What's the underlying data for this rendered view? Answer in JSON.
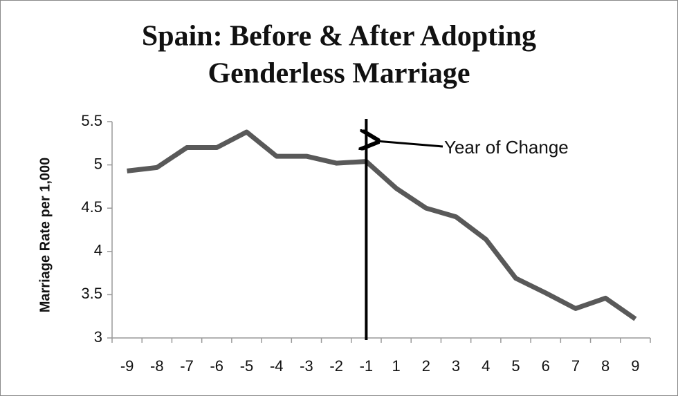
{
  "chart_data": {
    "type": "line",
    "title": [
      "Spain: Before & After Adopting",
      "Genderless Marriage"
    ],
    "y_label": "Marriage Rate per 1,000",
    "categories": [
      "-9",
      "-8",
      "-7",
      "-6",
      "-5",
      "-4",
      "-3",
      "-2",
      "-1",
      "1",
      "2",
      "3",
      "4",
      "5",
      "6",
      "7",
      "8",
      "9"
    ],
    "values": [
      4.93,
      4.97,
      5.2,
      5.2,
      5.38,
      5.1,
      5.1,
      5.02,
      5.04,
      4.73,
      4.5,
      4.4,
      4.14,
      3.69,
      3.52,
      3.34,
      3.46,
      3.22
    ],
    "color": "#595959",
    "ylim": [
      3,
      5.5
    ],
    "yticks": [
      3,
      3.5,
      4,
      4.5,
      5,
      5.5
    ],
    "grid": false,
    "annotation": {
      "text": "Year of Change",
      "category": "-1"
    }
  }
}
